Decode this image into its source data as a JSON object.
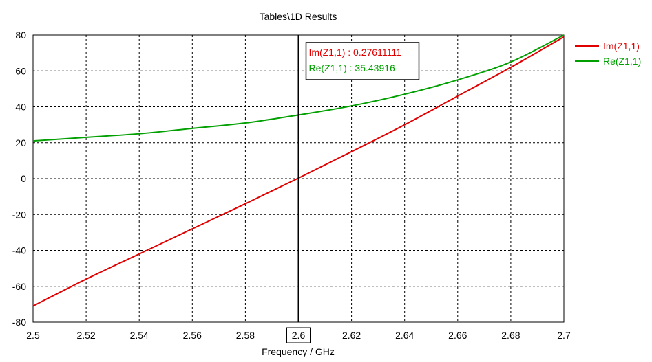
{
  "chart_data": {
    "type": "line",
    "title": "Tables\\1D Results",
    "xlabel": "Frequency / GHz",
    "ylabel": "",
    "xlim": [
      2.5,
      2.7
    ],
    "ylim": [
      -80,
      80
    ],
    "x_ticks": [
      2.5,
      2.52,
      2.54,
      2.56,
      2.58,
      2.6,
      2.62,
      2.64,
      2.66,
      2.68,
      2.7
    ],
    "x_tick_labels": [
      "2.5",
      "2.52",
      "2.54",
      "2.56",
      "2.58",
      "2.6",
      "2.62",
      "2.64",
      "2.66",
      "2.68",
      "2.7"
    ],
    "y_ticks": [
      -80,
      -60,
      -40,
      -20,
      0,
      20,
      40,
      60,
      80
    ],
    "y_tick_labels": [
      "-80",
      "-60",
      "-40",
      "-20",
      "0",
      "20",
      "40",
      "60",
      "80"
    ],
    "grid": true,
    "legend_position": "right-top",
    "series": [
      {
        "name": "Im(Z1,1)",
        "color": "#e00000",
        "x": [
          2.5,
          2.52,
          2.54,
          2.56,
          2.58,
          2.6,
          2.62,
          2.64,
          2.66,
          2.68,
          2.7
        ],
        "y": [
          -71,
          -56,
          -42,
          -28,
          -14,
          0.28,
          15,
          30,
          46,
          62,
          79
        ]
      },
      {
        "name": "Re(Z1,1)",
        "color": "#00a000",
        "x": [
          2.5,
          2.52,
          2.54,
          2.56,
          2.58,
          2.6,
          2.62,
          2.64,
          2.66,
          2.68,
          2.7
        ],
        "y": [
          21,
          23,
          25,
          28,
          31,
          35.44,
          40.5,
          47,
          55,
          65,
          80
        ]
      }
    ],
    "marker": {
      "x": 2.6,
      "x_label": "2.6",
      "readouts": [
        {
          "text": "Im(Z1,1) : 0.27611111",
          "color": "#e00000"
        },
        {
          "text": "Re(Z1,1) : 35.43916",
          "color": "#00a000"
        }
      ]
    }
  }
}
